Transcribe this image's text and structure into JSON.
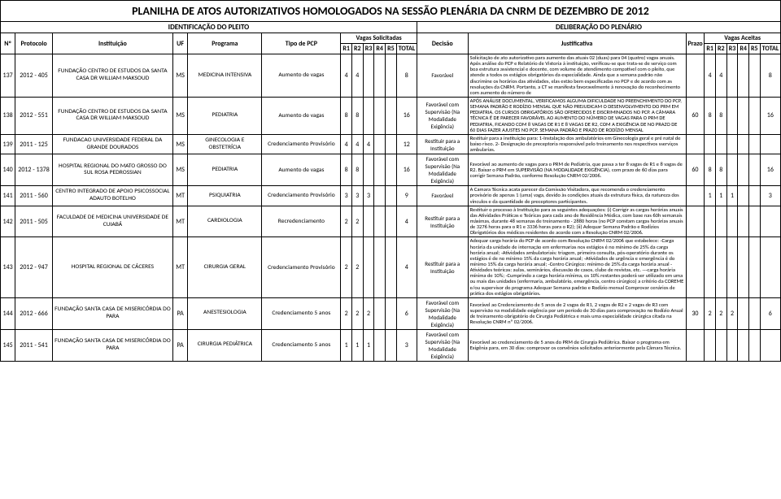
{
  "title": "PLANILHA DE ATOS AUTORIZATIVOS HOMOLOGADOS NA SESSÃO PLENÁRIA DA CNRM DE DEZEMBRO DE 2012",
  "section_left": "IDENTIFICAÇÃO DO PLEITO",
  "section_right": "DELIBERAÇÃO DO PLENÁRIO",
  "headers": {
    "n": "Nº",
    "protocolo": "Protocolo",
    "instituicao": "Instituição",
    "uf": "UF",
    "programa": "Programa",
    "tipo": "Tipo de PCP",
    "vagas_sol": "Vagas Solicitadas",
    "decisao": "Decisão",
    "justificativa": "Justificativa",
    "prazo": "Prazo",
    "vagas_ac": "Vagas Aceitas",
    "r1": "R1",
    "r2": "R2",
    "r3": "R3",
    "r4": "R4",
    "r5": "R5",
    "total": "TOTAL"
  },
  "rows": [
    {
      "n": "137",
      "proto": "2012 - 405",
      "inst": "FUNDAÇÃO CENTRO DE ESTUDOS DA SANTA CASA DR WILLIAM MAKSOUD",
      "uf": "MS",
      "prog": "MEDICINA INTENSIVA",
      "tipo": "Aumento de vagas",
      "sr1": "4",
      "sr2": "4",
      "sr3": "",
      "sr4": "",
      "sr5": "",
      "stot": "8",
      "dec": "Favorável",
      "just": "Solicitação de ato autorizativo para aumento das atuais 02 (duas) para 04 (quatro) vagas anuais. Após análise do PCP e Relatório de Vistoria à instituição, verificou-se que trata-se de serviço com boa estrutura assistencial e docente, com volume de atendimento compatível com o pleito, que atende a todos os estágios obrigatórios da especialidade. Ainda que a semana padrão não discrimine os horários das atividades, elas estão bem especificadas no PCP e de acordo com as resoluções da CNRM. Portanto, a CT se manifesta favoravelmente à renovação do reconhecimento com aumento do número de",
      "prazo": "",
      "ar1": "4",
      "ar2": "4",
      "ar3": "",
      "ar4": "",
      "ar5": "",
      "atot": "8"
    },
    {
      "n": "138",
      "proto": "2012 - 551",
      "inst": "FUNDAÇÃO CENTRO DE ESTUDOS DA SANTA CASA DR WILLIAM MAKSOUD",
      "uf": "MS",
      "prog": "PEDIATRIA",
      "tipo": "Aumento de vagas",
      "sr1": "8",
      "sr2": "8",
      "sr3": "",
      "sr4": "",
      "sr5": "",
      "stot": "16",
      "dec": "Favorável com Supervisão (Na Modalidade Exigência)",
      "just": "APÓS ANÁLISE DOCUMENTAL, VERIFICAMOS ALGUMA DIFICULDADE NO PREENCHIMENTO DO PCP, SEMANA PADRÃO E RODÍZIO MENSAL QUE NÃO PREJUDICAM O DESENVOLVIMENTO DO PRM EM PEDIATRIA. OS CURSOS OBRIGATÓRIOS SÃO OFERECIDOS E DISCRIMINADOS NO PCP. A CÂMARA TÉCNICA É DE PARECER FAVORÁVEL AO AUMENTO DO NÚMERO DE VAGAS PARA O PRM DE PEDIATRIA, FICANDO COM 8 VAGAS DE R1 E 8 VAGAS DE R2, COM A EXIGÊNCIA DE NO PRAZO DE 60 DIAS FAZER AJUSTES NO PCP, SEMANA PADRÃO E PRAZO DE RODÍZIO MENSAL",
      "prazo": "60",
      "ar1": "8",
      "ar2": "8",
      "ar3": "",
      "ar4": "",
      "ar5": "",
      "atot": "16"
    },
    {
      "n": "139",
      "proto": "2011 - 125",
      "inst": "FUNDACAO UNIVERSIDADE FEDERAL DA GRANDE DOURADOS",
      "uf": "MS",
      "prog": "GINECOLOGIA E OBSTETRÍCIA",
      "tipo": "Credenciamento Provisório",
      "sr1": "4",
      "sr2": "4",
      "sr3": "4",
      "sr4": "",
      "sr5": "",
      "stot": "12",
      "dec": "Restituir para a Instituição",
      "just": "Restituir para a instituição para: 1-Instalação dos ambulatórios em Ginecologia geral e pré natal de baixo risco. 2- Designação de preceptoria responsável pelo treinamento nos respectivos sserviços ambularias.",
      "prazo": "",
      "ar1": "",
      "ar2": "",
      "ar3": "",
      "ar4": "",
      "ar5": "",
      "atot": ""
    },
    {
      "n": "140",
      "proto": "2012 - 1378",
      "inst": "HOSPITAL REGIONAL DO MATO GROSSO DO SUL ROSA PEDROSSIAN",
      "uf": "MS",
      "prog": "PEDIATRIA",
      "tipo": "Aumento de vagas",
      "sr1": "8",
      "sr2": "8",
      "sr3": "",
      "sr4": "",
      "sr5": "",
      "stot": "16",
      "dec": "Favorável com Supervisão (Na Modalidade Exigência)",
      "just": "Favorável ao aumento de vagas para o PRM de Pediatria, que passa a ter 8 vagas de R1 e 8 vagas de R2. Baixar o PRM em SUPERVISÃO (NA MODALIDADE EXIGÊNCIA), com prazo de 60 dias para corrigir Semana Padrão, conforme Resolução CNRM 02/2006.",
      "prazo": "60",
      "ar1": "8",
      "ar2": "8",
      "ar3": "",
      "ar4": "",
      "ar5": "",
      "atot": "16"
    },
    {
      "n": "141",
      "proto": "2011 - 560",
      "inst": "CENTRO INTEGRADO DE APOIO PSICOSSOCIAL ADAUTO BOTELHO",
      "uf": "MT",
      "prog": "PSIQUIATRIA",
      "tipo": "Credenciamento Provisório",
      "sr1": "3",
      "sr2": "3",
      "sr3": "3",
      "sr4": "",
      "sr5": "",
      "stot": "9",
      "dec": "Favorável",
      "just": "A Camara Técnica acata parecer da Comissão Visitadora, que recomenda o credenciamento provisório de apenas 1 (uma) vaga, devido às condições atuais da estrutura física, da natureza dos vínculos e da quantidade de preceptores participantes.",
      "prazo": "",
      "ar1": "1",
      "ar2": "1",
      "ar3": "1",
      "ar4": "",
      "ar5": "",
      "atot": "3"
    },
    {
      "n": "142",
      "proto": "2011 - 505",
      "inst": "FACULDADE DE MEDICINA UNIVERSIDADE DE CUIABÁ",
      "uf": "MT",
      "prog": "CARDIOLOGIA",
      "tipo": "Recredenciamento",
      "sr1": "2",
      "sr2": "2",
      "sr3": "",
      "sr4": "",
      "sr5": "",
      "stot": "4",
      "dec": "Restituir para a Instituição",
      "just": "Restituir o processo à Instituição para as seguintes adequações: (i) Corrigir as cargas horárias anuais das Atividades Práticas e Teóricas para cada ano de Residência Médica, com base nas 60h semanais máximas, durante 48 semanas de treinamento - 2880 horas (no PCP constam cargas horárias anuais de 3276 horas para o R1 e 3336 horas para o R2); (ii) Adequar Semana Padrão e Rodízios Obrigatórios dos médicos residentes de acordo com a Resolução CNRM 02/2006.",
      "prazo": "",
      "ar1": "",
      "ar2": "",
      "ar3": "",
      "ar4": "",
      "ar5": "",
      "atot": ""
    },
    {
      "n": "143",
      "proto": "2012 - 947",
      "inst": "HOSPITAL REGIONAL DE CÁCERES",
      "uf": "MT",
      "prog": "CIRURGIA GERAL",
      "tipo": "Credenciamento Provisório",
      "sr1": "2",
      "sr2": "2",
      "sr3": "",
      "sr4": "",
      "sr5": "",
      "stot": "4",
      "dec": "Restituir para a Instituição",
      "just": "Adequar carga horária do PCP de acordo com Resolução CNRM 02/2006 que estabelece: -Carga horária da unidade de internação em enfermarias nos estágios é no mínimo de 25% da carga horária anual; -Atividades ambulatoriais: triagem, primeira consulta, pós-operatório durante os estágios é de no mínimo 15% da carga horária anual; -Atividades de urgência e emergência é do mínimo 15% da carga horária anual; -Centro Cirúrgico: mínimo de 25% da carga horária anual -Atividades teóricas: aulas, seminários, discussão de casos, clube de revistas, etc. ---carga horária mínima de 10%; -Cumprindo a carga horária mínima, os 10% restantes poderá ser utilizado em uma ou mais das unidades (enfermaria, ambulatório, emergência, centro cirúrgico) a critério da COREME e/ou supervisor do programa Adequar Semana padrão e Rodízio mensal Comprovar cenários de prática dos estágios obrigatórios.",
      "prazo": "",
      "ar1": "",
      "ar2": "",
      "ar3": "",
      "ar4": "",
      "ar5": "",
      "atot": ""
    },
    {
      "n": "144",
      "proto": "2012 - 666",
      "inst": "FUNDAÇÃO SANTA CASA DE MISERICÓRDIA DO PARA",
      "uf": "PA",
      "prog": "ANESTESIOLOGIA",
      "tipo": "Credenciamento 5 anos",
      "sr1": "2",
      "sr2": "2",
      "sr3": "2",
      "sr4": "",
      "sr5": "",
      "stot": "6",
      "dec": "Favorável com Supervisão (Na Modalidade Exigência)",
      "just": "Favorável ao Credenciamento de 5 anos de 2 vagas de R1, 2 vagas de R2 e 2 vagas de R3 com supervisão na modalidade exigência por um período de 30 dias para comprovação no Rodízio Anual de treinamento obrigatório de Cirurgia Pediátrica e mais uma especialidade cirúrgica citada na Resolução CNRM nº 02/2006.",
      "prazo": "30",
      "ar1": "2",
      "ar2": "2",
      "ar3": "2",
      "ar4": "",
      "ar5": "",
      "atot": "6"
    },
    {
      "n": "145",
      "proto": "2011 - 541",
      "inst": "FUNDAÇÃO SANTA CASA DE MISERICÓRDIA DO PARA",
      "uf": "PA",
      "prog": "CIRURGIA PEDIÁTRICA",
      "tipo": "Credenciamento 5 anos",
      "sr1": "1",
      "sr2": "1",
      "sr3": "1",
      "sr4": "",
      "sr5": "",
      "stot": "3",
      "dec": "Favorável com Supervisão (Na Modalidade Exigência)",
      "just": "Favorável ao credenciamento de 5 anos do PRM de Cirurgia Pediátrica. Baixar o programa em Exigênia para, em 30 dias: comprovar os convênios solicitados anteriormente pela Câmara Técnica.",
      "prazo": "",
      "ar1": "",
      "ar2": "",
      "ar3": "",
      "ar4": "",
      "ar5": "",
      "atot": ""
    }
  ]
}
